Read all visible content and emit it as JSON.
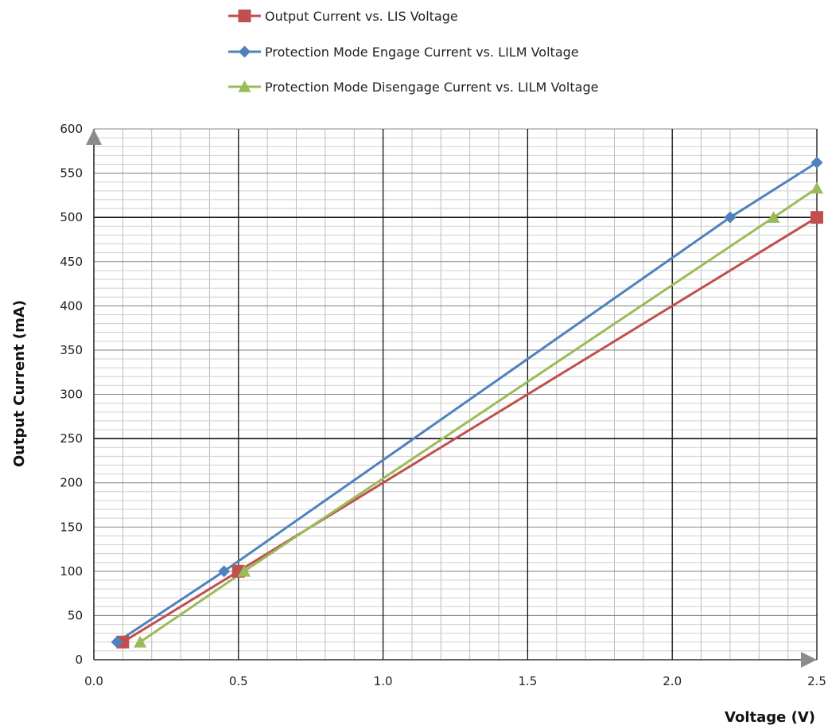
{
  "chart_data": {
    "type": "line",
    "xlabel": "Voltage (V)",
    "ylabel": "Output Current (mA)",
    "xlim": [
      0,
      2.5
    ],
    "ylim": [
      0,
      600
    ],
    "x_ticks": [
      "0.0",
      "0.5",
      "1.0",
      "1.5",
      "2.0",
      "2.5"
    ],
    "y_ticks": [
      "0",
      "50",
      "100",
      "150",
      "200",
      "250",
      "300",
      "350",
      "400",
      "450",
      "500",
      "550",
      "600"
    ],
    "grid": true,
    "legend_position": "top",
    "series": [
      {
        "name": "Output Current vs. LIS Voltage",
        "color": "#c0504d",
        "marker": "square",
        "points": [
          [
            0.1,
            20
          ],
          [
            0.5,
            100
          ],
          [
            2.5,
            500
          ]
        ]
      },
      {
        "name": "Protection Mode Engage Current vs. LILM Voltage",
        "color": "#4f81bd",
        "marker": "diamond",
        "points": [
          [
            0.08,
            20
          ],
          [
            0.45,
            100
          ],
          [
            2.2,
            500
          ],
          [
            2.5,
            562
          ]
        ]
      },
      {
        "name": "Protection Mode Disengage Current vs. LILM Voltage",
        "color": "#9bbb59",
        "marker": "triangle",
        "points": [
          [
            0.16,
            20
          ],
          [
            0.52,
            100
          ],
          [
            2.35,
            500
          ],
          [
            2.5,
            533
          ]
        ]
      }
    ]
  }
}
